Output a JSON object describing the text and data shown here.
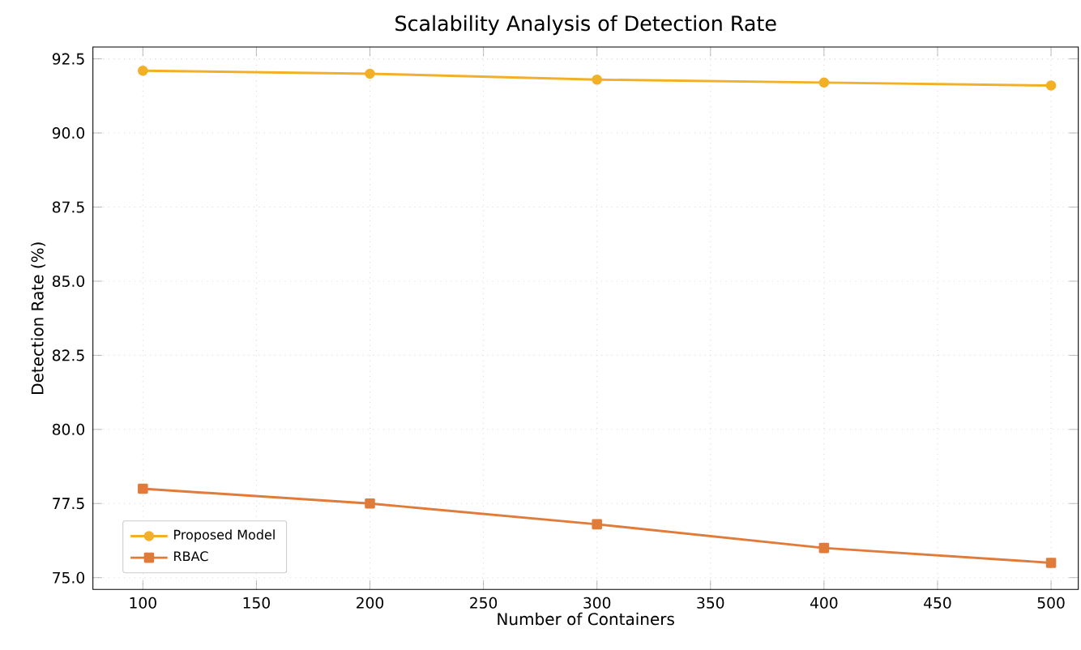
{
  "chart_data": {
    "type": "line",
    "title": "Scalability Analysis of Detection Rate",
    "xlabel": "Number of Containers",
    "ylabel": "Detection Rate (%)",
    "x": [
      100,
      200,
      300,
      400,
      500
    ],
    "series": [
      {
        "name": "Proposed Model",
        "color": "#f2b027",
        "values": [
          92.1,
          92.0,
          91.8,
          91.7,
          91.6
        ],
        "marker": "circle"
      },
      {
        "name": "RBAC",
        "color": "#e07b39",
        "values": [
          78.0,
          77.5,
          76.8,
          76.0,
          75.5
        ],
        "marker": "square"
      }
    ],
    "xlim": [
      78,
      512
    ],
    "ylim": [
      74.6,
      92.9
    ],
    "xticks": [
      100,
      150,
      200,
      250,
      300,
      350,
      400,
      450,
      500
    ],
    "yticks": [
      {
        "value": 75,
        "label": "75.0"
      },
      77.5,
      {
        "value": 80,
        "label": "80.0"
      },
      82.5,
      {
        "value": 85,
        "label": "85.0"
      },
      87.5,
      {
        "value": 90,
        "label": "90.0"
      },
      92.5
    ],
    "grid": true,
    "legend": "bottom left",
    "line_style": "solid"
  }
}
